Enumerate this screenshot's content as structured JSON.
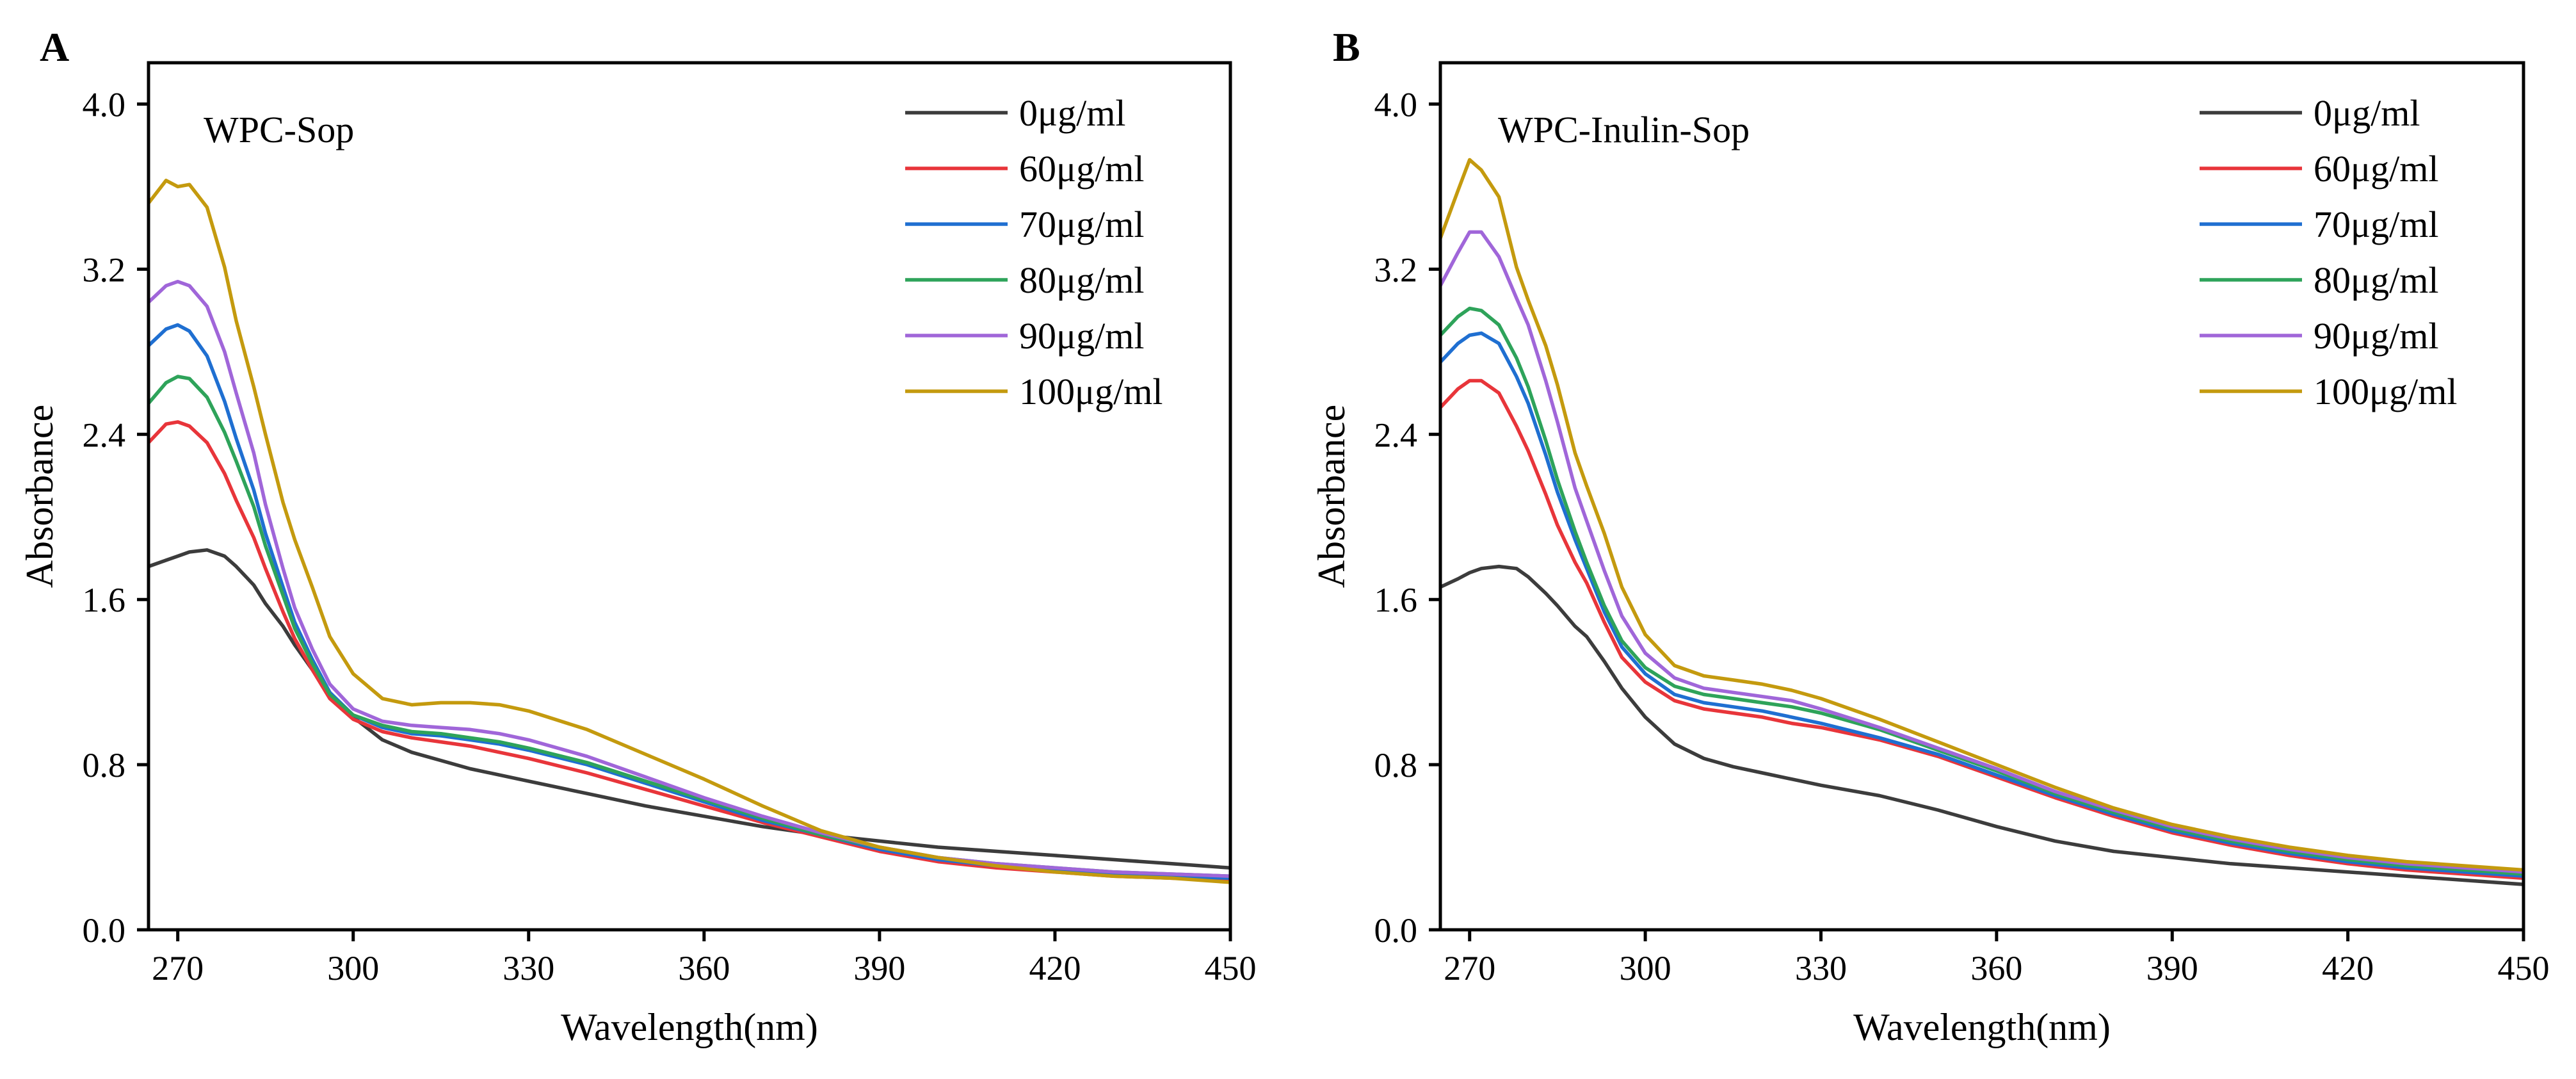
{
  "chart_data": [
    {
      "type": "line",
      "panel_label": "A",
      "title": "WPC-Sop",
      "xlabel": "Wavelength(nm)",
      "ylabel": "Absorbance",
      "xlim": [
        265,
        450
      ],
      "ylim": [
        0,
        4.2
      ],
      "xticks": [
        270,
        300,
        330,
        360,
        390,
        420,
        450
      ],
      "yticks": [
        0.0,
        0.8,
        1.6,
        2.4,
        3.2,
        4.0
      ],
      "xtick_labels": [
        "270",
        "300",
        "330",
        "360",
        "390",
        "420",
        "450"
      ],
      "ytick_labels": [
        "0.0",
        "0.8",
        "1.6",
        "2.4",
        "3.2",
        "4.0"
      ],
      "legend_position": "top-right",
      "x": [
        265,
        268,
        270,
        272,
        275,
        278,
        280,
        283,
        285,
        288,
        290,
        293,
        296,
        300,
        305,
        310,
        315,
        320,
        325,
        330,
        340,
        350,
        360,
        370,
        380,
        390,
        400,
        410,
        420,
        430,
        440,
        450
      ],
      "series": [
        {
          "name": "0μg/ml",
          "color": "#3c3c3c",
          "values": [
            1.76,
            1.79,
            1.81,
            1.83,
            1.84,
            1.81,
            1.76,
            1.67,
            1.58,
            1.47,
            1.38,
            1.26,
            1.13,
            1.03,
            0.92,
            0.86,
            0.82,
            0.78,
            0.75,
            0.72,
            0.66,
            0.6,
            0.55,
            0.5,
            0.46,
            0.43,
            0.4,
            0.38,
            0.36,
            0.34,
            0.32,
            0.3
          ]
        },
        {
          "name": "60μg/ml",
          "color": "#e8353a",
          "values": [
            2.36,
            2.45,
            2.46,
            2.44,
            2.36,
            2.21,
            2.08,
            1.9,
            1.75,
            1.54,
            1.41,
            1.26,
            1.12,
            1.02,
            0.96,
            0.93,
            0.91,
            0.89,
            0.86,
            0.83,
            0.76,
            0.68,
            0.6,
            0.52,
            0.45,
            0.38,
            0.33,
            0.3,
            0.28,
            0.26,
            0.25,
            0.24
          ]
        },
        {
          "name": "70μg/ml",
          "color": "#1f6fd1",
          "values": [
            2.83,
            2.91,
            2.93,
            2.9,
            2.78,
            2.56,
            2.38,
            2.13,
            1.92,
            1.66,
            1.49,
            1.31,
            1.15,
            1.04,
            0.98,
            0.95,
            0.94,
            0.92,
            0.9,
            0.87,
            0.8,
            0.71,
            0.62,
            0.53,
            0.46,
            0.39,
            0.34,
            0.31,
            0.29,
            0.27,
            0.26,
            0.25
          ]
        },
        {
          "name": "80μg/ml",
          "color": "#2ea35a",
          "values": [
            2.55,
            2.65,
            2.68,
            2.67,
            2.58,
            2.41,
            2.27,
            2.05,
            1.86,
            1.62,
            1.46,
            1.29,
            1.14,
            1.04,
            0.99,
            0.96,
            0.95,
            0.93,
            0.91,
            0.88,
            0.81,
            0.72,
            0.63,
            0.54,
            0.46,
            0.4,
            0.35,
            0.32,
            0.3,
            0.28,
            0.27,
            0.26
          ]
        },
        {
          "name": "90μg/ml",
          "color": "#a066d9",
          "values": [
            3.04,
            3.12,
            3.14,
            3.12,
            3.02,
            2.8,
            2.6,
            2.31,
            2.06,
            1.75,
            1.56,
            1.36,
            1.19,
            1.07,
            1.01,
            0.99,
            0.98,
            0.97,
            0.95,
            0.92,
            0.84,
            0.74,
            0.64,
            0.55,
            0.47,
            0.4,
            0.35,
            0.32,
            0.3,
            0.28,
            0.27,
            0.26
          ]
        },
        {
          "name": "100μg/ml",
          "color": "#c49a0e",
          "values": [
            3.52,
            3.63,
            3.6,
            3.61,
            3.5,
            3.21,
            2.95,
            2.63,
            2.4,
            2.07,
            1.89,
            1.66,
            1.42,
            1.24,
            1.12,
            1.09,
            1.1,
            1.1,
            1.09,
            1.06,
            0.97,
            0.85,
            0.73,
            0.6,
            0.48,
            0.4,
            0.35,
            0.31,
            0.28,
            0.26,
            0.25,
            0.23
          ]
        }
      ]
    },
    {
      "type": "line",
      "panel_label": "B",
      "title": "WPC-Inulin-Sop",
      "xlabel": "Wavelength(nm)",
      "ylabel": "Absorbance",
      "xlim": [
        265,
        450
      ],
      "ylim": [
        0,
        4.2
      ],
      "xticks": [
        270,
        300,
        330,
        360,
        390,
        420,
        450
      ],
      "yticks": [
        0.0,
        0.8,
        1.6,
        2.4,
        3.2,
        4.0
      ],
      "xtick_labels": [
        "270",
        "300",
        "330",
        "360",
        "390",
        "420",
        "450"
      ],
      "ytick_labels": [
        "0.0",
        "0.8",
        "1.6",
        "2.4",
        "3.2",
        "4.0"
      ],
      "legend_position": "top-right",
      "x": [
        265,
        268,
        270,
        272,
        275,
        278,
        280,
        283,
        285,
        288,
        290,
        293,
        296,
        300,
        305,
        310,
        315,
        320,
        325,
        330,
        340,
        350,
        360,
        370,
        380,
        390,
        400,
        410,
        420,
        430,
        440,
        450
      ],
      "series": [
        {
          "name": "0μg/ml",
          "color": "#3c3c3c",
          "values": [
            1.66,
            1.7,
            1.73,
            1.75,
            1.76,
            1.75,
            1.71,
            1.63,
            1.57,
            1.47,
            1.42,
            1.3,
            1.17,
            1.03,
            0.9,
            0.83,
            0.79,
            0.76,
            0.73,
            0.7,
            0.65,
            0.58,
            0.5,
            0.43,
            0.38,
            0.35,
            0.32,
            0.3,
            0.28,
            0.26,
            0.24,
            0.22
          ]
        },
        {
          "name": "60μg/ml",
          "color": "#e8353a",
          "values": [
            2.53,
            2.62,
            2.66,
            2.66,
            2.6,
            2.44,
            2.32,
            2.11,
            1.96,
            1.78,
            1.68,
            1.49,
            1.32,
            1.2,
            1.11,
            1.07,
            1.05,
            1.03,
            1.0,
            0.98,
            0.92,
            0.84,
            0.74,
            0.64,
            0.55,
            0.47,
            0.41,
            0.36,
            0.32,
            0.29,
            0.27,
            0.25
          ]
        },
        {
          "name": "70μg/ml",
          "color": "#1f6fd1",
          "values": [
            2.75,
            2.84,
            2.88,
            2.89,
            2.84,
            2.68,
            2.55,
            2.3,
            2.12,
            1.89,
            1.75,
            1.54,
            1.37,
            1.24,
            1.14,
            1.1,
            1.08,
            1.06,
            1.03,
            1.0,
            0.93,
            0.85,
            0.75,
            0.65,
            0.56,
            0.48,
            0.42,
            0.37,
            0.33,
            0.3,
            0.28,
            0.26
          ]
        },
        {
          "name": "80μg/ml",
          "color": "#2ea35a",
          "values": [
            2.88,
            2.97,
            3.01,
            3.0,
            2.93,
            2.77,
            2.63,
            2.37,
            2.18,
            1.93,
            1.78,
            1.57,
            1.4,
            1.27,
            1.18,
            1.14,
            1.12,
            1.1,
            1.08,
            1.05,
            0.97,
            0.87,
            0.77,
            0.66,
            0.57,
            0.49,
            0.43,
            0.38,
            0.34,
            0.31,
            0.29,
            0.27
          ]
        },
        {
          "name": "90μg/ml",
          "color": "#a066d9",
          "values": [
            3.12,
            3.28,
            3.38,
            3.38,
            3.26,
            3.06,
            2.93,
            2.66,
            2.46,
            2.14,
            1.98,
            1.74,
            1.52,
            1.34,
            1.22,
            1.17,
            1.15,
            1.13,
            1.11,
            1.07,
            0.98,
            0.88,
            0.78,
            0.67,
            0.58,
            0.5,
            0.44,
            0.39,
            0.35,
            0.32,
            0.3,
            0.28
          ]
        },
        {
          "name": "100μg/ml",
          "color": "#c49a0e",
          "values": [
            3.35,
            3.58,
            3.73,
            3.68,
            3.55,
            3.21,
            3.05,
            2.83,
            2.64,
            2.31,
            2.15,
            1.92,
            1.66,
            1.43,
            1.28,
            1.23,
            1.21,
            1.19,
            1.16,
            1.12,
            1.02,
            0.91,
            0.8,
            0.69,
            0.59,
            0.51,
            0.45,
            0.4,
            0.36,
            0.33,
            0.31,
            0.29
          ]
        }
      ]
    }
  ]
}
